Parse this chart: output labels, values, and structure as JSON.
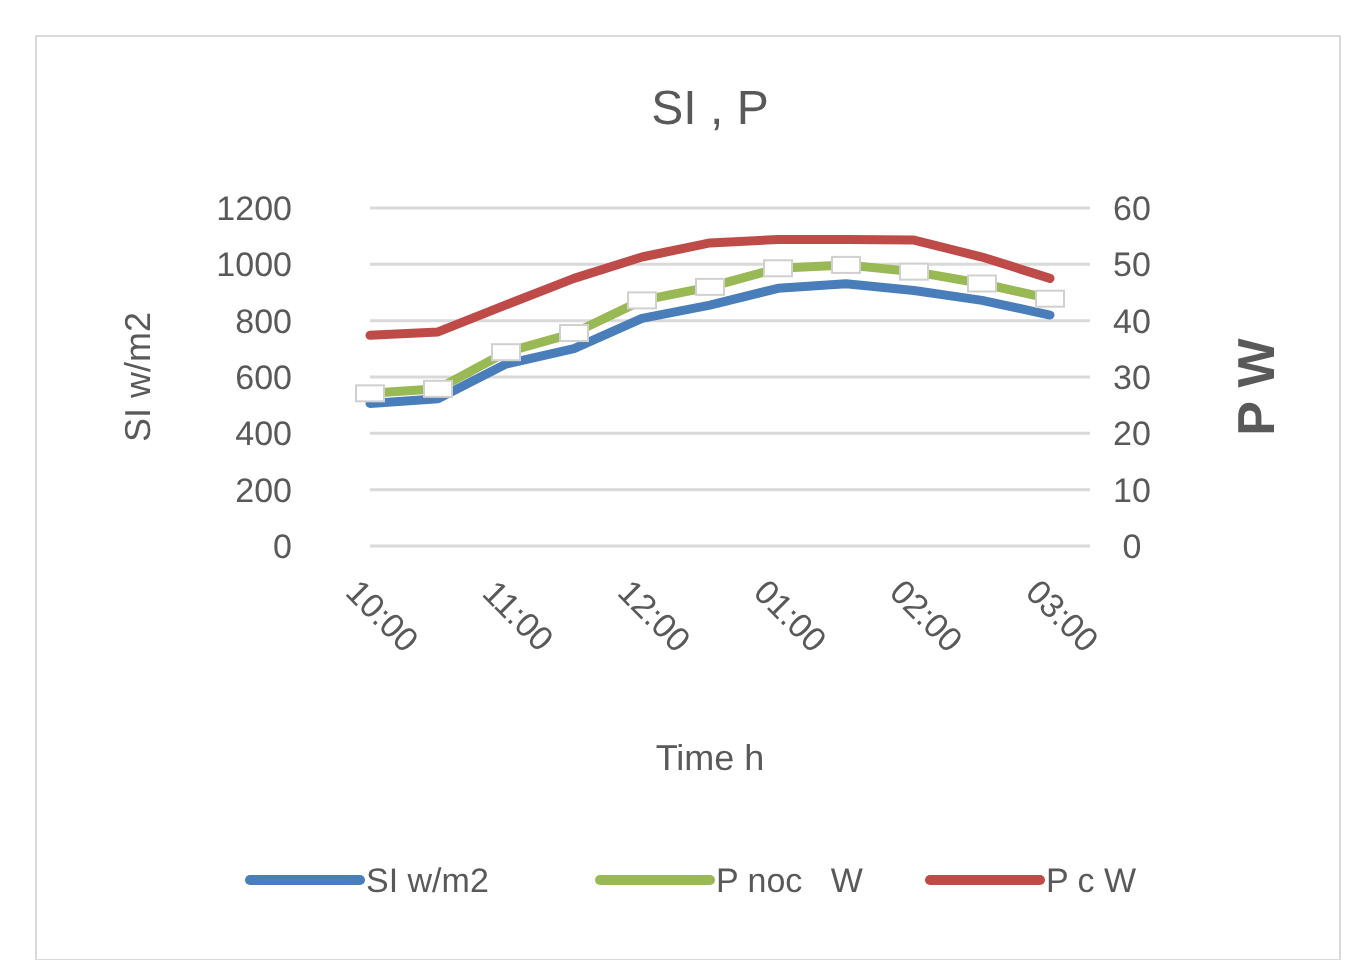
{
  "chart_data": {
    "type": "line",
    "title": "SI  , P",
    "xlabel": "Time h",
    "ylabel": "SI w/m2",
    "y2label": "P W",
    "categories": [
      "10:00",
      null,
      "11:00",
      null,
      "12:00",
      null,
      "01:00",
      null,
      "02:00",
      null,
      "03:00"
    ],
    "series": [
      {
        "name": "SI w/m2",
        "color": "#4a7ebb",
        "values": [
          506,
          523,
          646,
          701,
          808,
          855,
          915,
          931,
          907,
          872,
          820
        ]
      },
      {
        "name": "P noc   W",
        "color": "#98b954",
        "axis": "y2",
        "marker": "square",
        "values": [
          27.1,
          27.9,
          34.4,
          37.8,
          43.6,
          46.0,
          49.3,
          49.9,
          48.7,
          46.6,
          43.9
        ]
      },
      {
        "name": "P c W",
        "color": "#be4b48",
        "axis": "y2",
        "values": [
          37.4,
          38.0,
          42.8,
          47.5,
          51.3,
          53.8,
          54.4,
          54.4,
          54.3,
          51.3,
          47.5
        ]
      }
    ],
    "ylim": [
      0,
      1200
    ],
    "yticks": [
      0,
      200,
      400,
      600,
      800,
      1000,
      1200
    ],
    "y2lim": [
      0,
      60
    ],
    "y2ticks": [
      0,
      10,
      20,
      30,
      40,
      50,
      60
    ],
    "grid": "y",
    "legend": "bottom"
  }
}
